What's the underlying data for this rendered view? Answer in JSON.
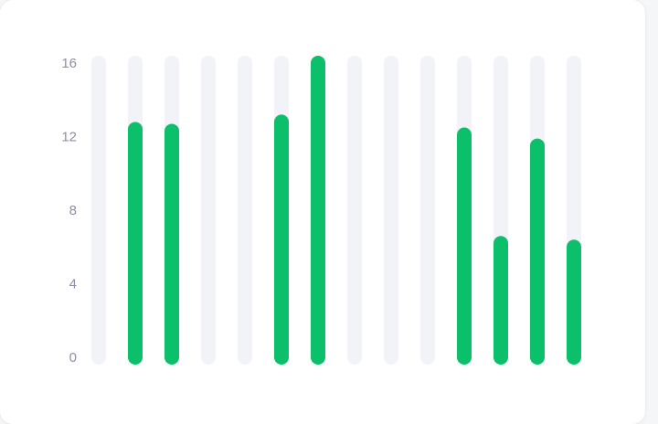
{
  "chart_data": {
    "type": "bar",
    "title": "",
    "xlabel": "",
    "ylabel": "",
    "ylim": [
      0,
      16
    ],
    "yticks": [
      0,
      4,
      8,
      12,
      16
    ],
    "grid": false,
    "categories": [
      "",
      "",
      "",
      "",
      "",
      "",
      "",
      "",
      "",
      "",
      "",
      "",
      "",
      ""
    ],
    "values": [
      0,
      12.4,
      12.3,
      0,
      0,
      12.8,
      16,
      0,
      0,
      0,
      12.1,
      6.2,
      11.5,
      6.0
    ],
    "colors": {
      "bar": "#0bbf6b",
      "track": "#f2f3f8",
      "tick_text": "#8b8fa8"
    }
  }
}
